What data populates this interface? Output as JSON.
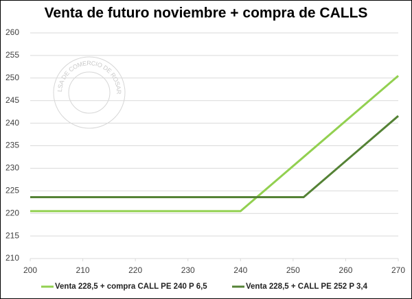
{
  "chart_data": {
    "type": "line",
    "title": "Venta de futuro noviembre + compra de CALLS",
    "watermark": "BOLSA DE COMERCIO DE ROSARIO",
    "x": [
      200,
      240,
      252,
      270
    ],
    "series": [
      {
        "name": "Venta 228,5 + compra CALL PE 240 P 6,5",
        "color": "#92d050",
        "values": [
          220.5,
          220.5,
          232.5,
          250.5
        ]
      },
      {
        "name": "Venta 228,5 + CALL PE 252 P 3,4",
        "color": "#548235",
        "values": [
          223.6,
          223.6,
          223.6,
          241.6
        ]
      }
    ],
    "xlim": [
      200,
      270
    ],
    "xticks": [
      200,
      210,
      220,
      230,
      240,
      250,
      260,
      270
    ],
    "ylim": [
      210,
      260
    ],
    "yticks": [
      210,
      215,
      220,
      225,
      230,
      235,
      240,
      245,
      250,
      255,
      260
    ],
    "grid": true,
    "legend": "bottom"
  }
}
